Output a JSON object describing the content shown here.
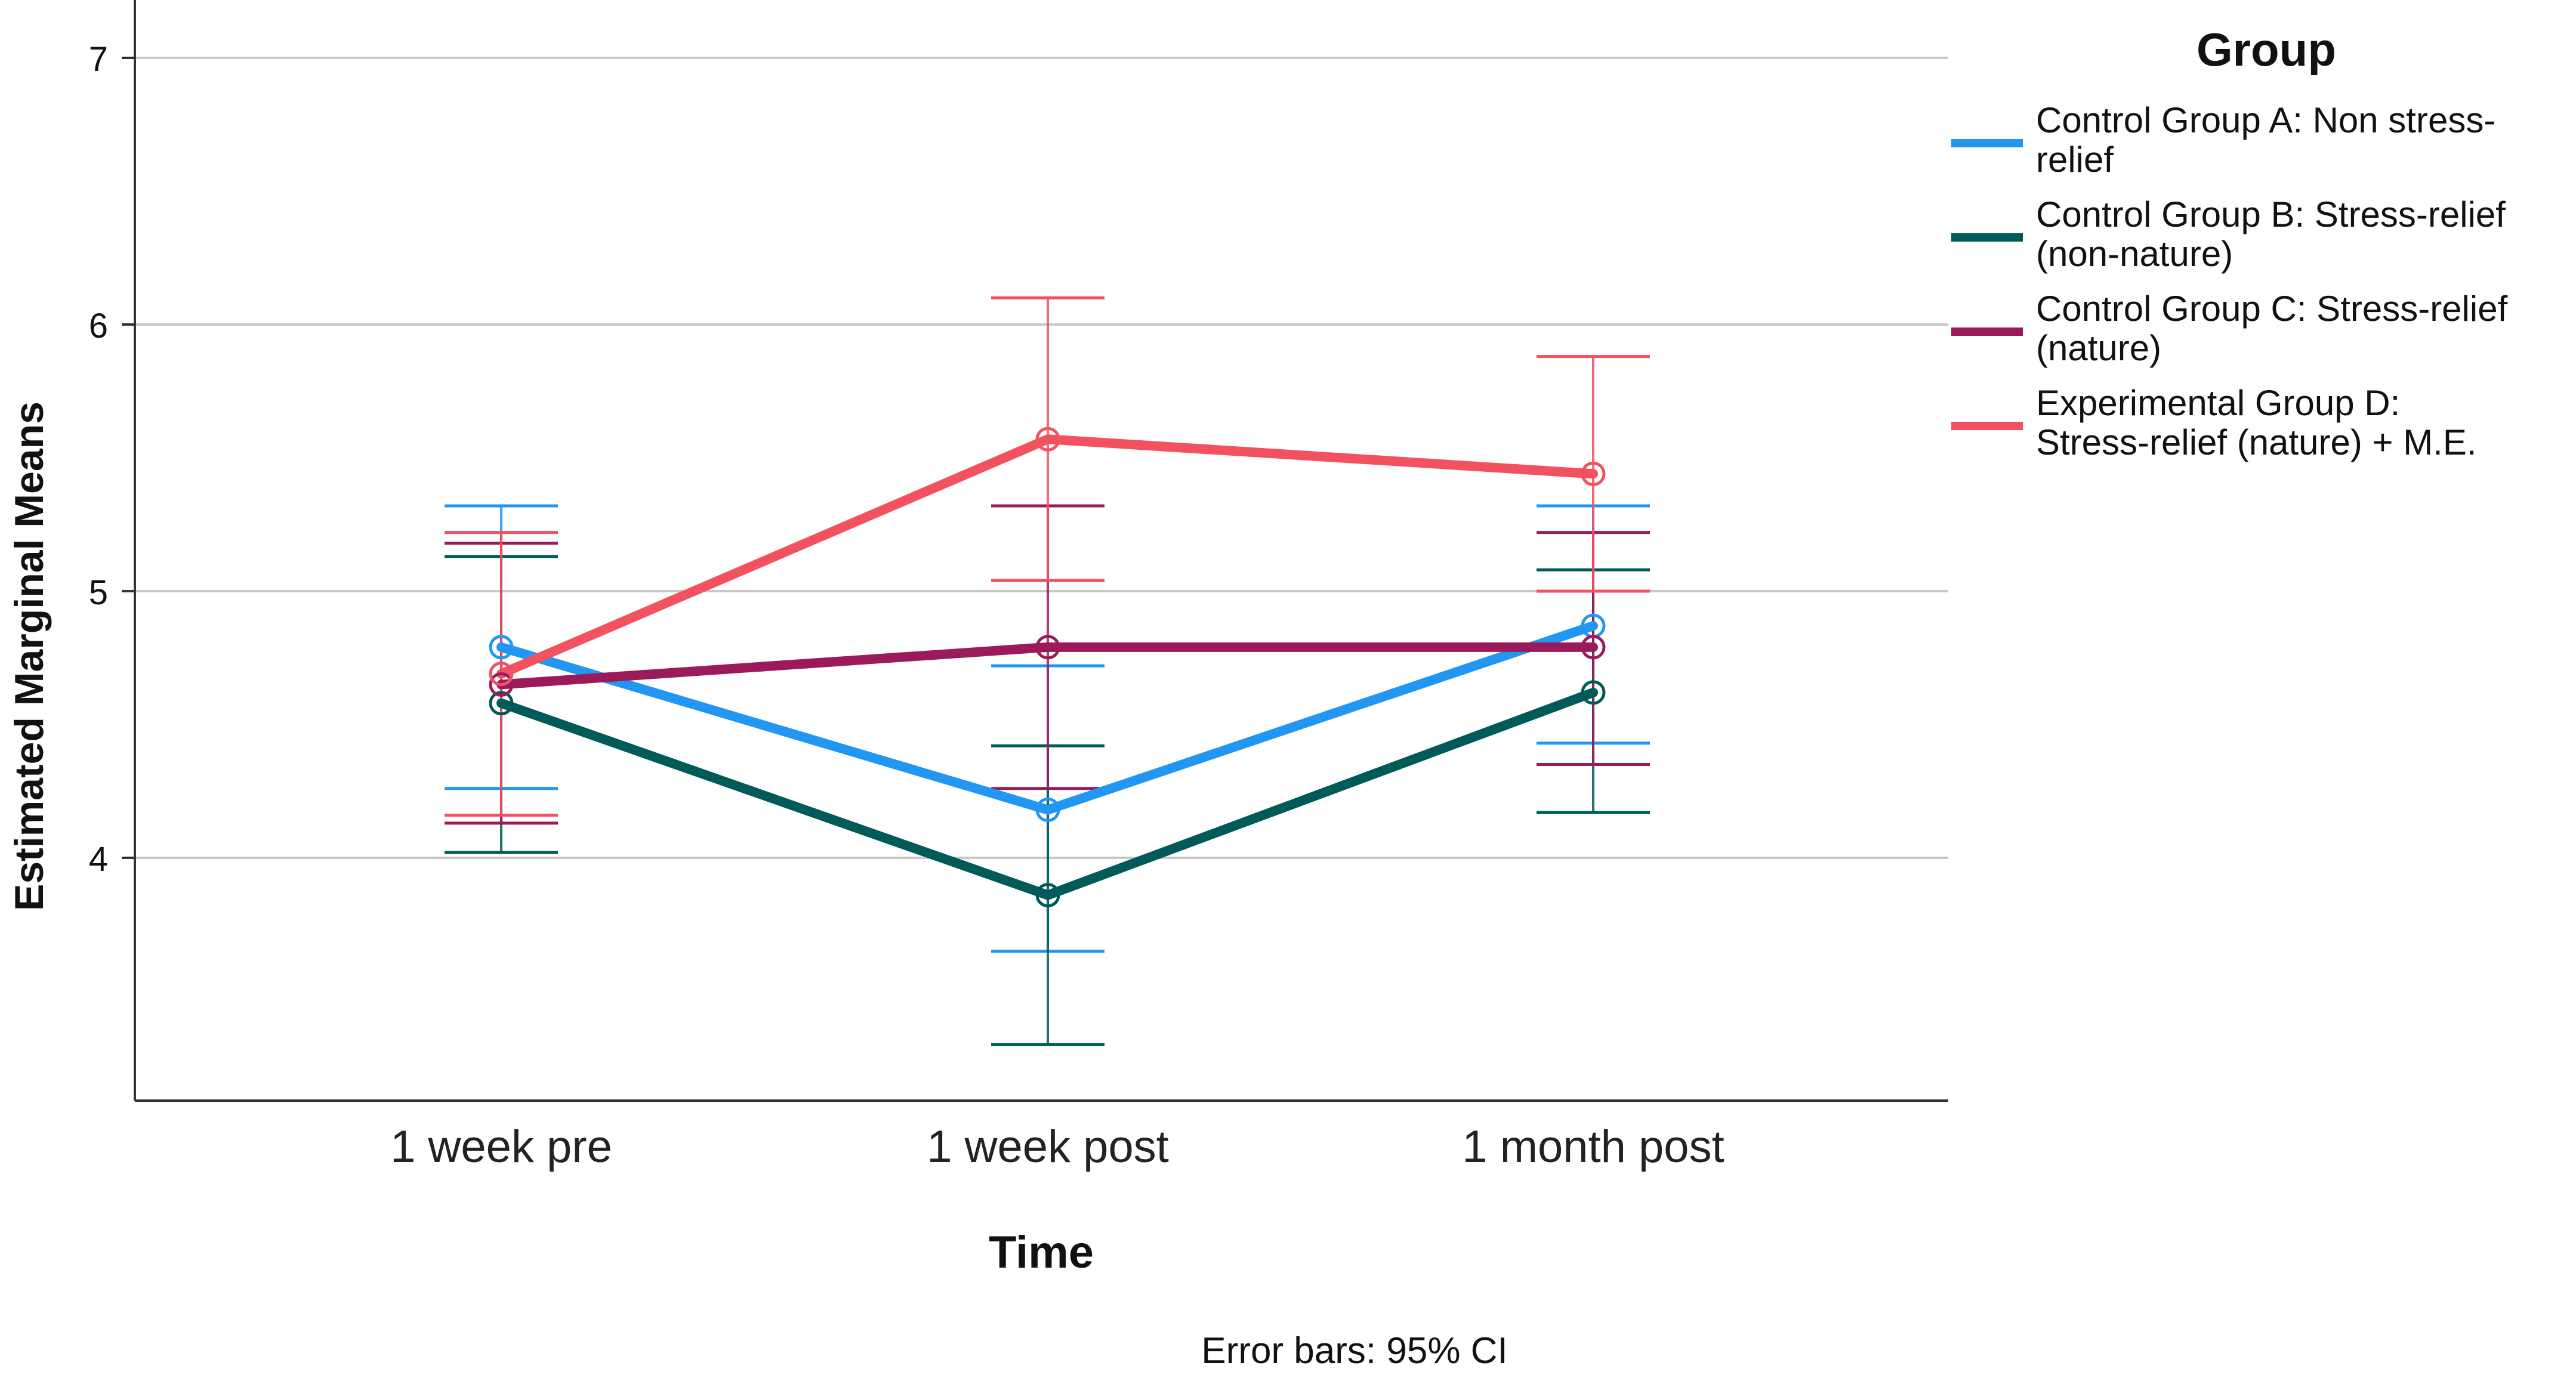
{
  "chart_data": {
    "type": "line",
    "title": "",
    "xlabel": "Time",
    "ylabel": "Estimated Marginal Means",
    "categories": [
      "1 week pre",
      "1 week post",
      "1 month post"
    ],
    "ylim": [
      3.1,
      7.2
    ],
    "yticks": [
      4,
      5,
      6,
      7
    ],
    "ytick_labels": [
      "4",
      "5",
      "6",
      "7"
    ],
    "grid": true,
    "legend_title": "Group",
    "legend_position": "right",
    "footnote": "Error bars: 95% CI",
    "series": [
      {
        "name": "Control Group A: Non stress-relief",
        "legend_lines": [
          "Control Group A: Non stress-",
          "relief"
        ],
        "color": "#2196f3",
        "values": [
          4.79,
          4.18,
          4.87
        ],
        "ci_low": [
          4.26,
          3.65,
          4.43
        ],
        "ci_high": [
          5.32,
          4.72,
          5.32
        ]
      },
      {
        "name": "Control Group B: Stress-relief (non-nature)",
        "legend_lines": [
          "Control Group B: Stress-relief",
          "(non-nature)"
        ],
        "color": "#005a57",
        "values": [
          4.58,
          3.86,
          4.62
        ],
        "ci_low": [
          4.02,
          3.3,
          4.17
        ],
        "ci_high": [
          5.13,
          4.42,
          5.08
        ]
      },
      {
        "name": "Control Group C: Stress-relief (nature)",
        "legend_lines": [
          "Control Group C: Stress-relief",
          "(nature)"
        ],
        "color": "#9b1b5a",
        "values": [
          4.65,
          4.79,
          4.79
        ],
        "ci_low": [
          4.13,
          4.26,
          4.35
        ],
        "ci_high": [
          5.18,
          5.32,
          5.22
        ]
      },
      {
        "name": "Experimental Group D: Stress-relief (nature) + M.E.",
        "legend_lines": [
          "Experimental Group D:",
          "Stress-relief (nature) + M.E."
        ],
        "color": "#f25160",
        "values": [
          4.69,
          5.57,
          5.44
        ],
        "ci_low": [
          4.16,
          5.04,
          5.0
        ],
        "ci_high": [
          5.22,
          6.1,
          5.88
        ]
      }
    ]
  }
}
